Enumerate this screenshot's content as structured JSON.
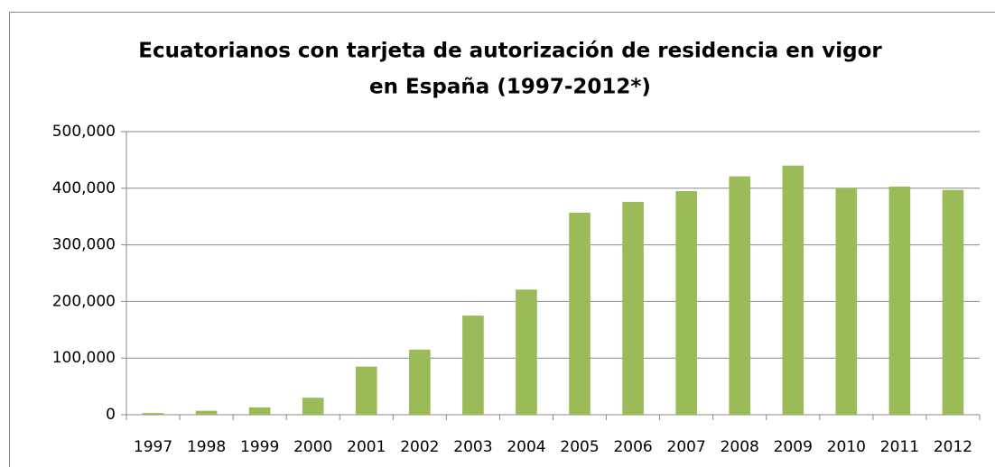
{
  "chart_data": {
    "type": "bar",
    "title": [
      "Ecuatorianos con tarjeta de autorización de residencia en vigor",
      "en España (1997-2012*)"
    ],
    "categories": [
      "1997",
      "1998",
      "1999",
      "2000",
      "2001",
      "2002",
      "2003",
      "2004",
      "2005",
      "2006",
      "2007",
      "2008",
      "2009",
      "2010",
      "2011",
      "2012"
    ],
    "values": [
      3000,
      7000,
      13000,
      30000,
      85000,
      115000,
      175000,
      221000,
      357000,
      376000,
      395000,
      421000,
      440000,
      400000,
      403000,
      397000
    ],
    "color": "#9bbb59",
    "ylim": [
      0,
      500000
    ],
    "yticks": [
      0,
      {
        "value": 100000,
        "label": "100,000"
      },
      {
        "value": 200000,
        "label": "200,000"
      },
      {
        "value": 300000,
        "label": "300,000"
      },
      {
        "value": 400000,
        "label": "400,000"
      },
      {
        "value": 500000,
        "label": "500,000"
      }
    ],
    "grid": true
  }
}
